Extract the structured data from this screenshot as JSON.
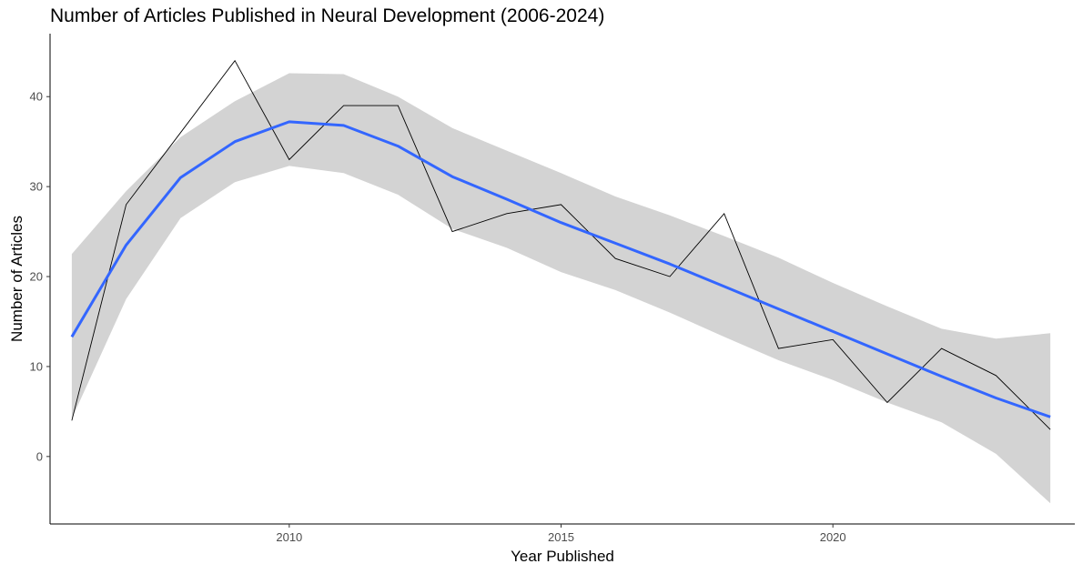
{
  "chart_data": {
    "type": "line",
    "title": "Number of Articles Published in Neural Development (2006-2024)",
    "xlabel": "Year Published",
    "ylabel": "Number of Articles",
    "xlim": [
      2005.6,
      2024.45
    ],
    "ylim": [
      -7.5,
      47
    ],
    "x_ticks": [
      2010,
      2015,
      2020
    ],
    "y_ticks": [
      0,
      10,
      20,
      30,
      40
    ],
    "grid": false,
    "legend": "none",
    "colors": {
      "observed": "#000000",
      "smooth": "#3366FF",
      "band": "#D3D3D3"
    },
    "series": [
      {
        "role": "observed",
        "x": [
          2006,
          2007,
          2008,
          2009,
          2010,
          2011,
          2012,
          2013,
          2014,
          2015,
          2016,
          2017,
          2018,
          2019,
          2020,
          2021,
          2022,
          2023,
          2024
        ],
        "values": [
          4,
          28,
          36,
          44,
          33,
          39,
          39,
          25,
          27,
          28,
          22,
          20,
          27,
          12,
          13,
          6,
          12,
          9,
          3
        ]
      },
      {
        "role": "smooth",
        "x": [
          2006,
          2007,
          2008,
          2009,
          2010,
          2011,
          2012,
          2013,
          2014,
          2015,
          2016,
          2017,
          2018,
          2019,
          2020,
          2021,
          2022,
          2023,
          2024
        ],
        "values": [
          13.3,
          23.5,
          31.0,
          35.0,
          37.2,
          36.8,
          34.5,
          31.1,
          28.6,
          26.0,
          23.7,
          21.4,
          18.9,
          16.4,
          13.9,
          11.4,
          8.9,
          6.5,
          4.4
        ],
        "lower": [
          4.2,
          17.5,
          26.5,
          30.5,
          32.3,
          31.5,
          29.1,
          25.3,
          23.2,
          20.5,
          18.5,
          16.0,
          13.3,
          10.7,
          8.5,
          6.0,
          3.8,
          0.3,
          -5.2
        ],
        "upper": [
          22.5,
          29.5,
          35.5,
          39.5,
          42.6,
          42.5,
          40.0,
          36.5,
          34.0,
          31.5,
          28.9,
          26.8,
          24.5,
          22.1,
          19.3,
          16.7,
          14.2,
          13.1,
          13.7
        ]
      }
    ]
  }
}
